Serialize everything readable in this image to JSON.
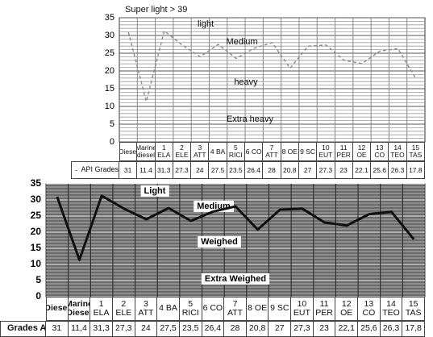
{
  "chart_data": [
    {
      "type": "line",
      "annotations": [
        "Super light > 39",
        "light",
        "Medium",
        "heavy",
        "Extra heavy"
      ],
      "categories": [
        "Diesel",
        "Marine diesel",
        "1 ELA",
        "2 ELE",
        "3 ATT",
        "4 BA",
        "5 RICI",
        "6 CO",
        "7 ATT",
        "8 OE",
        "9 SC",
        "10 EUT",
        "11 PER",
        "12 OE",
        "13 CO",
        "14 TEO",
        "15 TAS"
      ],
      "series": [
        {
          "name": "API Grades",
          "color": "#8a8a8a",
          "values": [
            31,
            11.4,
            31.3,
            27.3,
            24,
            27.5,
            23.5,
            26.4,
            28,
            20.8,
            27,
            27.3,
            23,
            22.1,
            25.6,
            26.3,
            17.8
          ]
        }
      ],
      "ylim": [
        0,
        35
      ],
      "yticks": [
        0,
        5,
        10,
        15,
        20,
        25,
        30,
        35
      ],
      "grid": true
    },
    {
      "type": "line",
      "annotations": [
        "Light",
        "Medium",
        "Weighed",
        "Extra Weighed"
      ],
      "categories": [
        "Diesel",
        "Marine Diesel",
        "1 ELA",
        "2 ELE",
        "3 ATT",
        "4 BA",
        "5 RICI",
        "6 CO",
        "7 ATT",
        "8 OE",
        "9 SC",
        "10 EUT",
        "11 PER",
        "12 OE",
        "13 CO",
        "14 TEO",
        "15 TAS"
      ],
      "series": [
        {
          "name": "Grades API",
          "color": "#111111",
          "values": [
            31,
            11.4,
            31.3,
            27.3,
            24,
            27.5,
            23.5,
            26.4,
            28,
            20.8,
            27,
            27.3,
            23,
            22.1,
            25.6,
            26.3,
            17.8
          ],
          "value_labels": [
            "31",
            "11,4",
            "31,3",
            "27,3",
            "24",
            "27,5",
            "23,5",
            "26,4",
            "28",
            "20,8",
            "27",
            "27,3",
            "23",
            "22,1",
            "25,6",
            "26,3",
            "17,8"
          ]
        }
      ],
      "ylim": [
        0,
        35
      ],
      "yticks": [
        0,
        5,
        10,
        15,
        20,
        25,
        30,
        35
      ],
      "grid": true
    }
  ]
}
